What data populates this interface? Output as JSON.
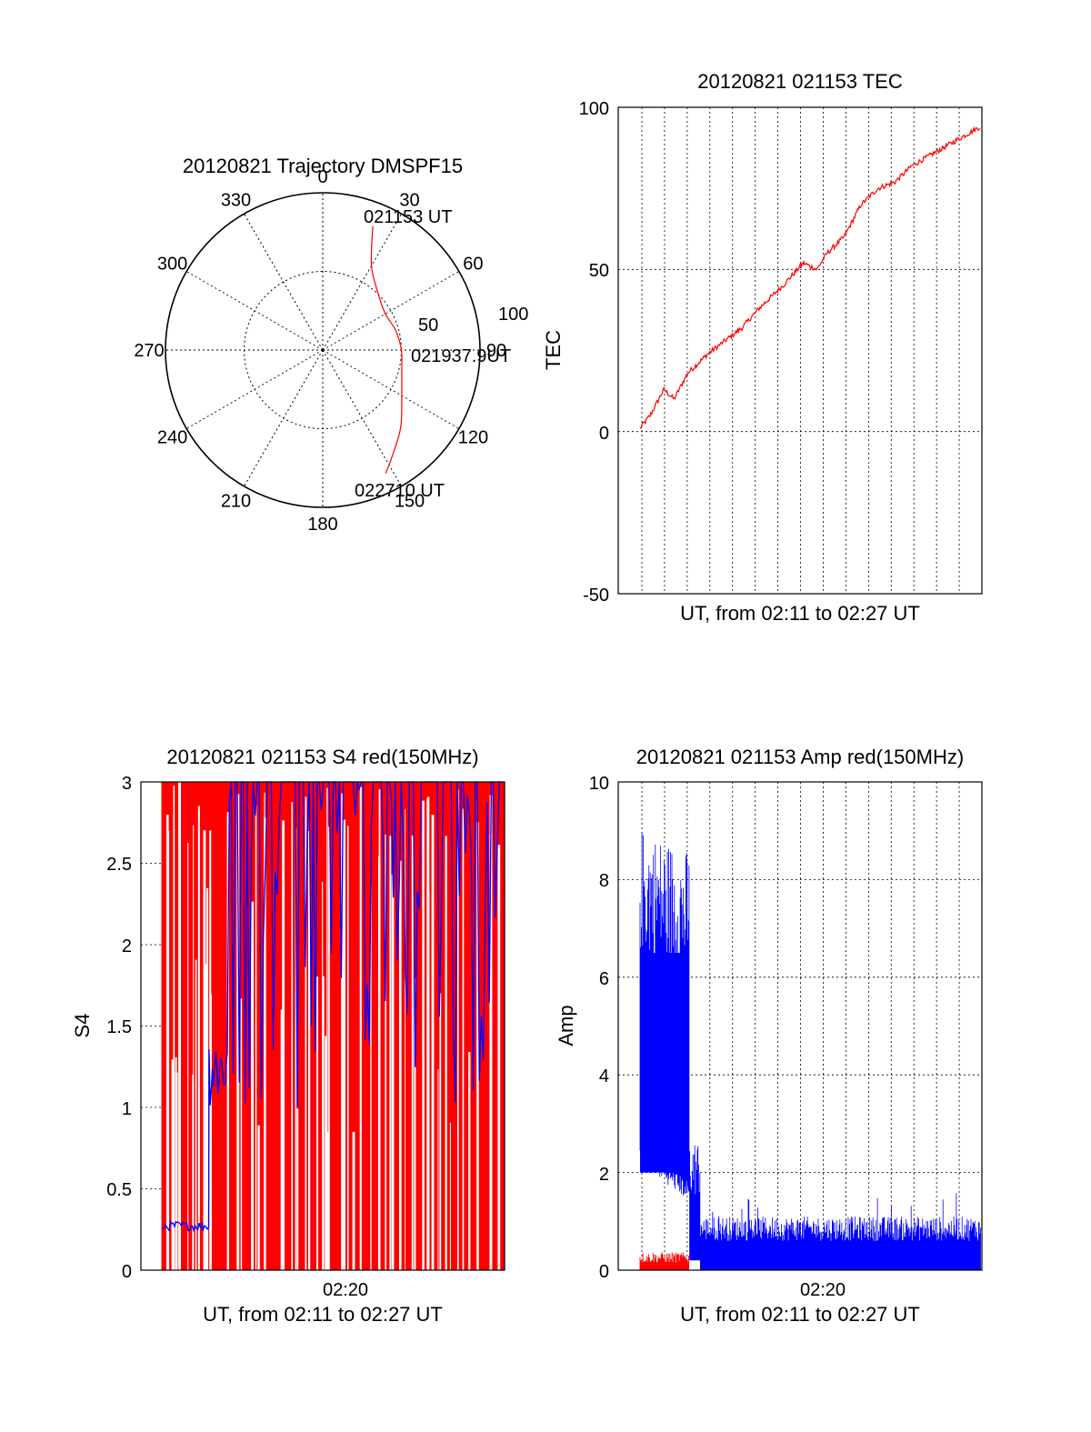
{
  "page": {
    "background": "#ffffff"
  },
  "colors": {
    "red": "#ff0000",
    "blue": "#0000ff",
    "axis": "#000000",
    "grid": "#000000"
  },
  "chart_data": [
    {
      "type": "polar",
      "title": "20120821 Trajectory DMSPF15",
      "angle_labels": [
        "0",
        "30",
        "60",
        "90",
        "120",
        "150",
        "180",
        "210",
        "240",
        "270",
        "300",
        "330"
      ],
      "radial_labels": [
        "50",
        "100"
      ],
      "rmax": 100,
      "grid": true,
      "series": [
        {
          "color": "#ff0000",
          "points_az_r": [
            [
              22,
              85
            ],
            [
              30,
              62
            ],
            [
              45,
              50
            ],
            [
              60,
              46
            ],
            [
              75,
              48
            ],
            [
              90,
              50
            ],
            [
              105,
              52
            ],
            [
              120,
              58
            ],
            [
              135,
              70
            ],
            [
              148,
              82
            ],
            [
              153,
              88
            ]
          ]
        }
      ],
      "annotations": [
        "021153 UT",
        "021937.9UT",
        "022710 UT"
      ]
    },
    {
      "type": "line",
      "title": "20120821 021153 TEC",
      "xlabel": "UT, from 02:11 to 02:27 UT",
      "ylabel": "TEC",
      "ylim": [
        -50,
        100
      ],
      "yticks": [
        "100",
        "50",
        "0",
        "-50"
      ],
      "grid": true,
      "series": [
        {
          "color": "#ff0000",
          "x_fraction": [
            0,
            0.03,
            0.07,
            0.1,
            0.14,
            0.2,
            0.25,
            0.3,
            0.35,
            0.42,
            0.48,
            0.52,
            0.55,
            0.6,
            0.65,
            0.7,
            0.75,
            0.8,
            0.85,
            0.9,
            0.95,
            1.0
          ],
          "values": [
            1,
            5,
            13,
            10,
            18,
            24,
            28,
            32,
            38,
            45,
            52,
            50,
            55,
            60,
            70,
            75,
            77,
            82,
            85,
            88,
            91,
            94
          ]
        }
      ]
    },
    {
      "type": "line",
      "title": "20120821 021153 S4 red(150MHz)",
      "xlabel": "UT, from 02:11 to 02:27 UT",
      "ylabel": "S4",
      "ylim": [
        0,
        3
      ],
      "yticks": [
        "3",
        "2.5",
        "2",
        "1.5",
        "1",
        "0.5",
        "0"
      ],
      "xticks": [
        "02:20"
      ],
      "grid": true,
      "series": [
        {
          "color": "#ff0000",
          "description_values": "saturated spikes 0-3 throughout"
        },
        {
          "color": "#0000ff",
          "early_level": 0.27,
          "mid_level": 1.2
        }
      ]
    },
    {
      "type": "line",
      "title": "20120821 021153 Amp red(150MHz)",
      "xlabel": "UT, from 02:11 to 02:27 UT",
      "ylabel": "Amp",
      "ylim": [
        0,
        10
      ],
      "yticks": [
        "10",
        "8",
        "6",
        "4",
        "2",
        "0"
      ],
      "xticks": [
        "02:20"
      ],
      "grid": true,
      "series": [
        {
          "color": "#0000ff",
          "early_peak": 9.0,
          "early_base": 1.8,
          "late_peak": 1.5
        },
        {
          "color": "#ff0000",
          "early_peak": 0.35
        }
      ]
    }
  ]
}
